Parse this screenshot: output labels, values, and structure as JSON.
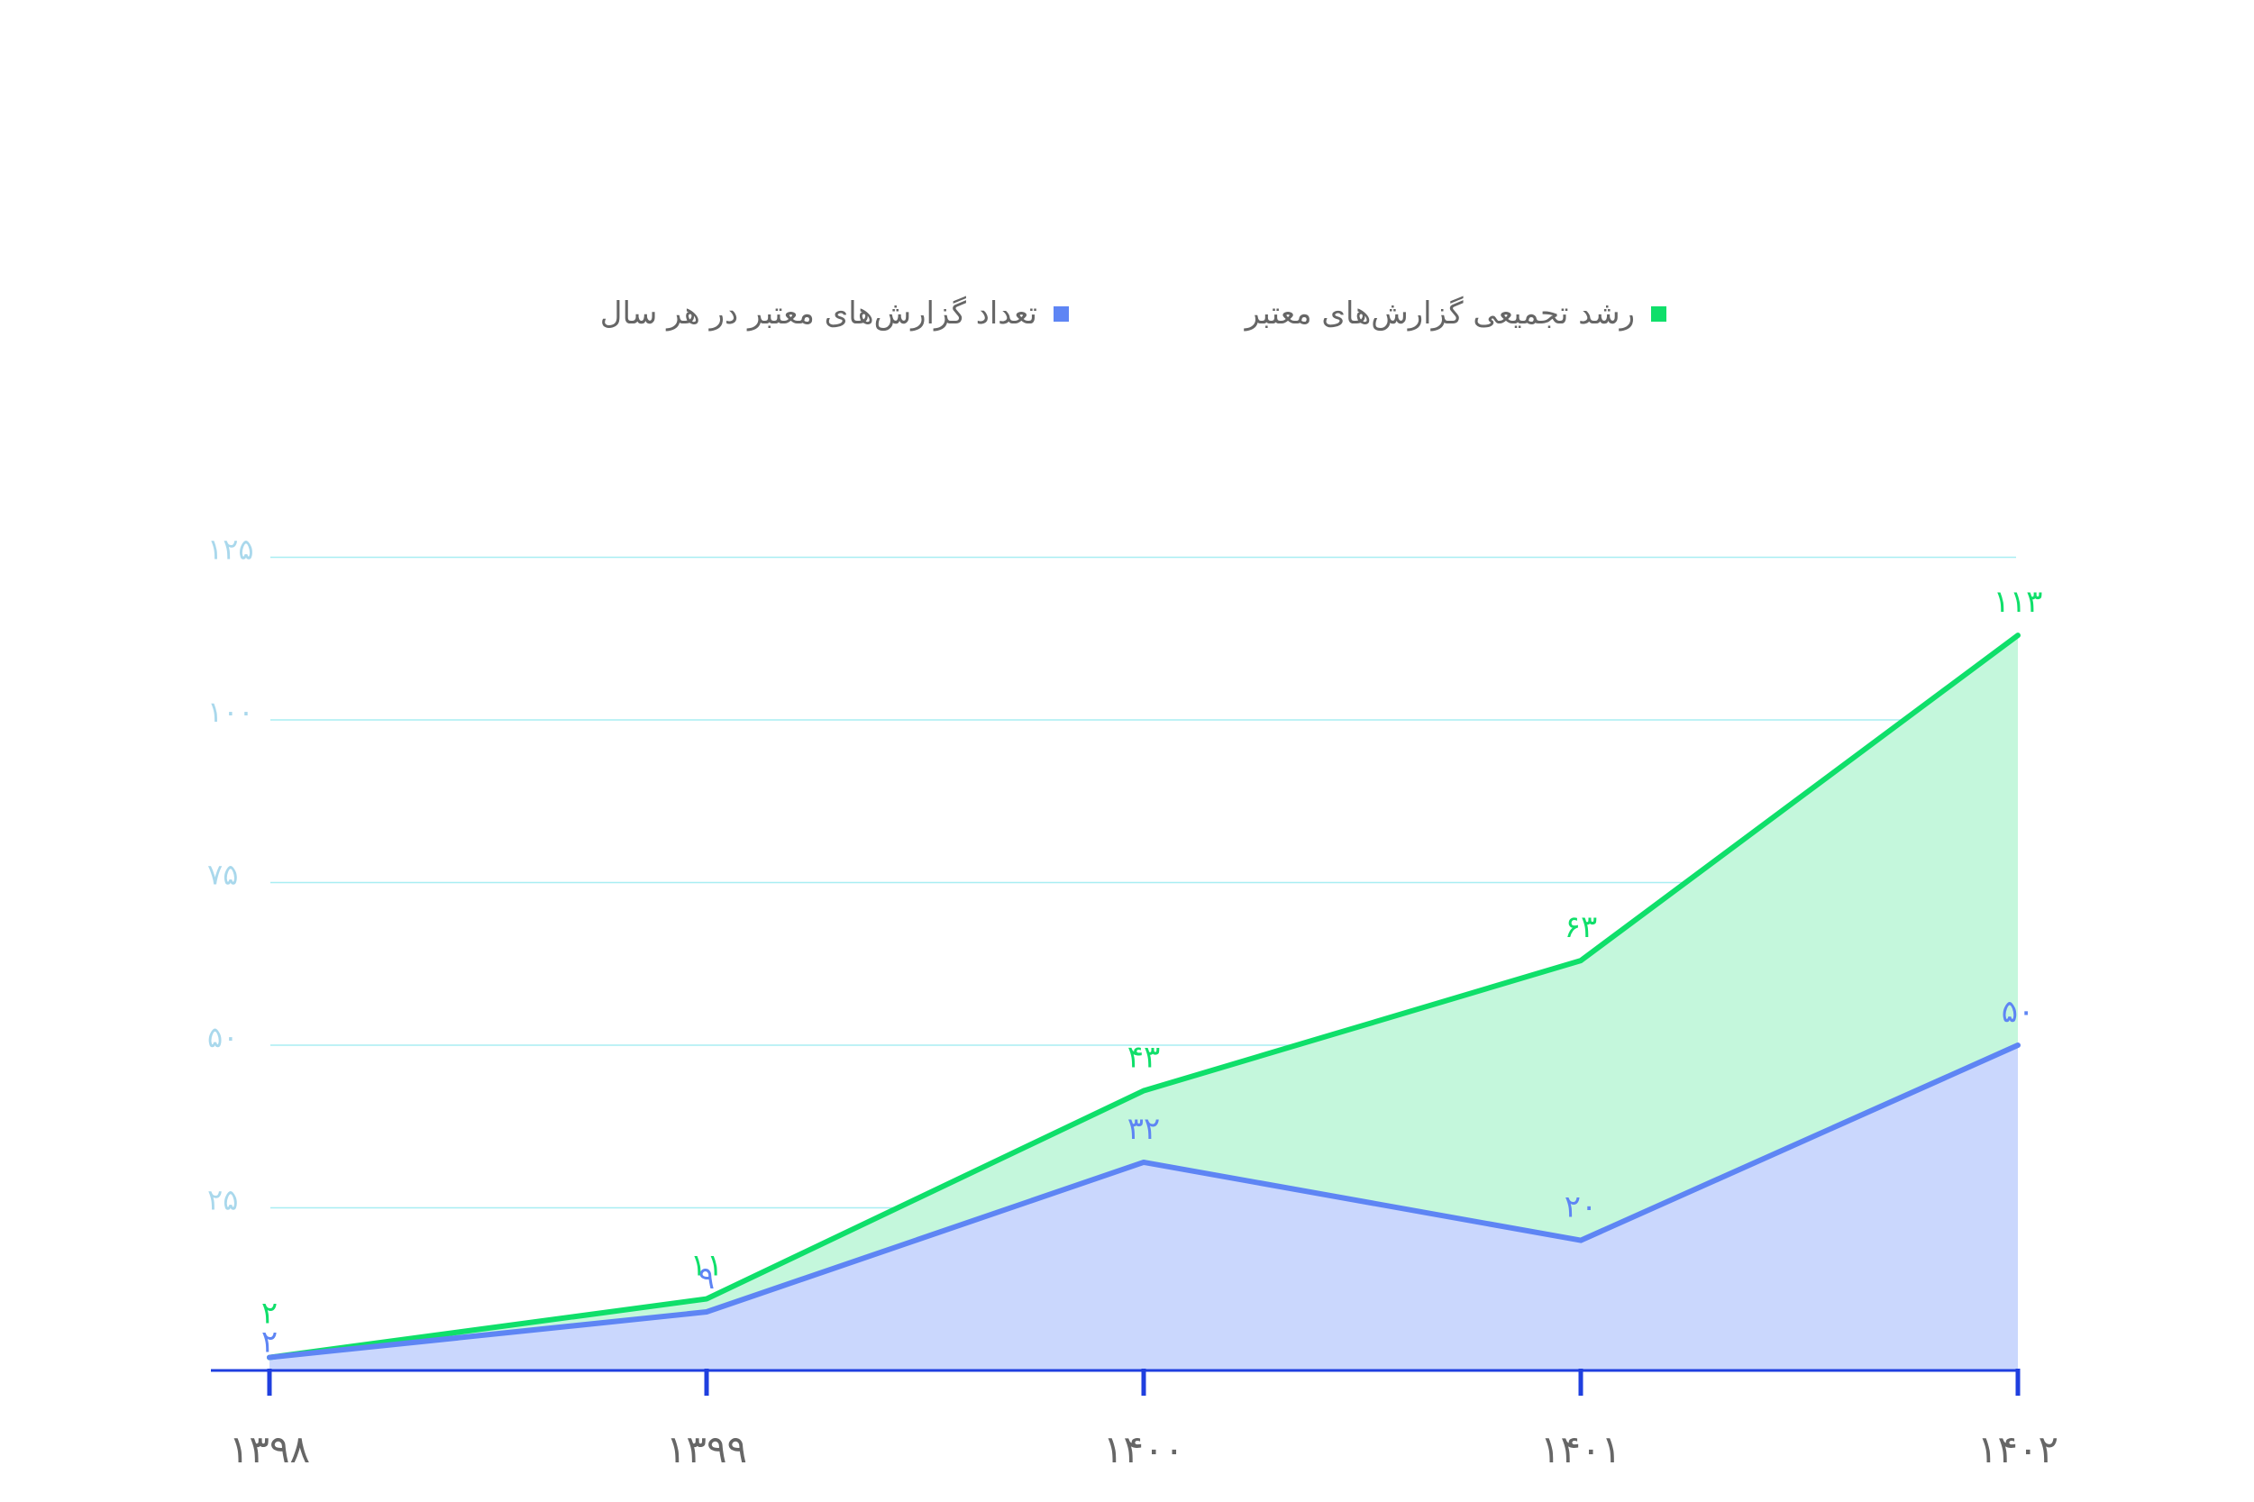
{
  "chart_data": {
    "type": "area",
    "categories": [
      "۱۳۹۸",
      "۱۳۹۹",
      "۱۴۰۰",
      "۱۴۰۱",
      "۱۴۰۲"
    ],
    "ylim": [
      0,
      125
    ],
    "yticks": [
      25,
      50,
      75,
      100,
      125
    ],
    "ytick_labels": [
      "۲۵",
      "۵۰",
      "۷۵",
      "۱۰۰",
      "۱۲۵"
    ],
    "grid": true,
    "legend_position": "top",
    "series": [
      {
        "name": "رشد تجمیعی گزارش‌های معتبر",
        "values": [
          2,
          11,
          43,
          63,
          113
        ],
        "labels": [
          "۲",
          "۱۱",
          "۴۳",
          "۶۳",
          "۱۱۳"
        ],
        "line_color": "#0FDF6A",
        "fill_color": "#C4F7DC"
      },
      {
        "name": "تعداد گزارش‌های معتبر در هر سال",
        "values": [
          2,
          9,
          32,
          20,
          50
        ],
        "labels": [
          "۲",
          "۹",
          "۳۲",
          "۲۰",
          "۵۰"
        ],
        "line_color": "#5E85F4",
        "fill_color": "#CAD7FD"
      }
    ],
    "axis_color": "#1F3FDF",
    "grid_color": "#A8EEF2",
    "ytick_color": "#A9D8EC"
  }
}
